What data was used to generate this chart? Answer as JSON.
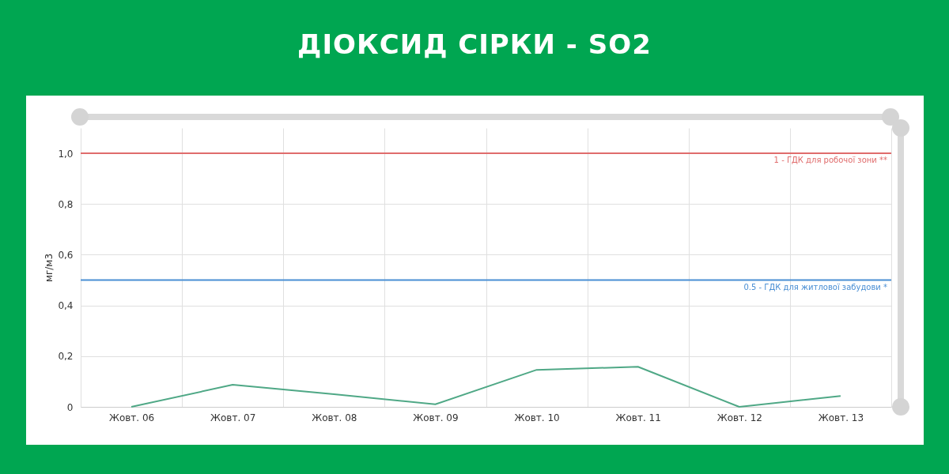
{
  "chart_data": {
    "type": "line",
    "title": "ДІОКСИД СІРКИ - SO2",
    "ylabel": "мг/м3",
    "categories": [
      "Жовт. 06",
      "Жовт. 07",
      "Жовт. 08",
      "Жовт. 09",
      "Жовт. 10",
      "Жовт. 11",
      "Жовт. 12",
      "Жовт. 13"
    ],
    "series": [
      {
        "color": "#4fa886",
        "values": [
          0,
          0.087,
          0.05,
          0.01,
          0.146,
          0.158,
          0,
          0.043
        ]
      }
    ],
    "ylim": [
      0,
      1.1
    ],
    "yticks": [
      0,
      {
        "value": 0.2,
        "label": "0,2"
      },
      {
        "value": 0.4,
        "label": "0,4"
      },
      {
        "value": 0.6,
        "label": "0,6"
      },
      {
        "value": 0.8,
        "label": "0,8"
      },
      {
        "value": 1,
        "label": "1,0"
      }
    ],
    "ref_lines": [
      {
        "axis": "y",
        "value": 1,
        "label": "1 - ГДК для робочої зони **",
        "color": "#e06c6c"
      },
      {
        "axis": "y",
        "value": 0.5,
        "label": "0.5 - ГДК для житлової забудови *",
        "color": "#4a8fd4"
      }
    ],
    "grid": true,
    "marker": "none",
    "line_style": "solid"
  }
}
